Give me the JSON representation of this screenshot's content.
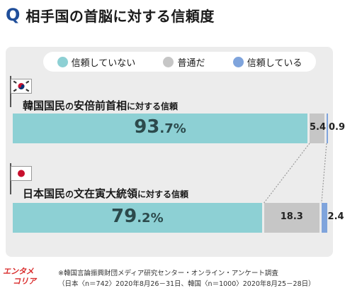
{
  "title": {
    "prefix": "Q",
    "text": "相手国の首脳に対する信頼度"
  },
  "legend": [
    {
      "label": "信頼していない",
      "color": "#8dd0d4"
    },
    {
      "label": "普通だ",
      "color": "#c6c6c6"
    },
    {
      "label": "信頼している",
      "color": "#7fa4dc"
    }
  ],
  "chart_data": {
    "type": "bar",
    "orientation": "horizontal-stacked",
    "title": "相手国の首脳に対する信頼度",
    "unit": "%",
    "categories": [
      {
        "label_main": "韓国国民",
        "label_mid": "の",
        "label_main2": "安倍前首相",
        "label_small": "に対する信頼"
      },
      {
        "label_main": "日本国民",
        "label_mid": "の",
        "label_main2": "文在寅大統領",
        "label_small": "に対する信頼"
      }
    ],
    "series": [
      {
        "name": "信頼していない",
        "color": "#8dd0d4",
        "values": [
          93.7,
          79.2
        ]
      },
      {
        "name": "普通だ",
        "color": "#c6c6c6",
        "values": [
          5.4,
          18.3
        ]
      },
      {
        "name": "信頼している",
        "color": "#7fa4dc",
        "values": [
          0.9,
          2.4
        ]
      }
    ],
    "display_labels": [
      [
        "93.7%",
        "5.4",
        "0.9"
      ],
      [
        "79.2%",
        "18.3",
        "2.4"
      ]
    ]
  },
  "footer": {
    "logo_line1": "エンタメ",
    "logo_line2": "コリア",
    "note_line1": "※韓国言論振興財団メディア研究センター・オンライン・アンケート調査",
    "note_line2": "（日本〈n＝742〉2020年8月26－31日、韓国〈n＝1000〉2020年8月25－28日）"
  }
}
